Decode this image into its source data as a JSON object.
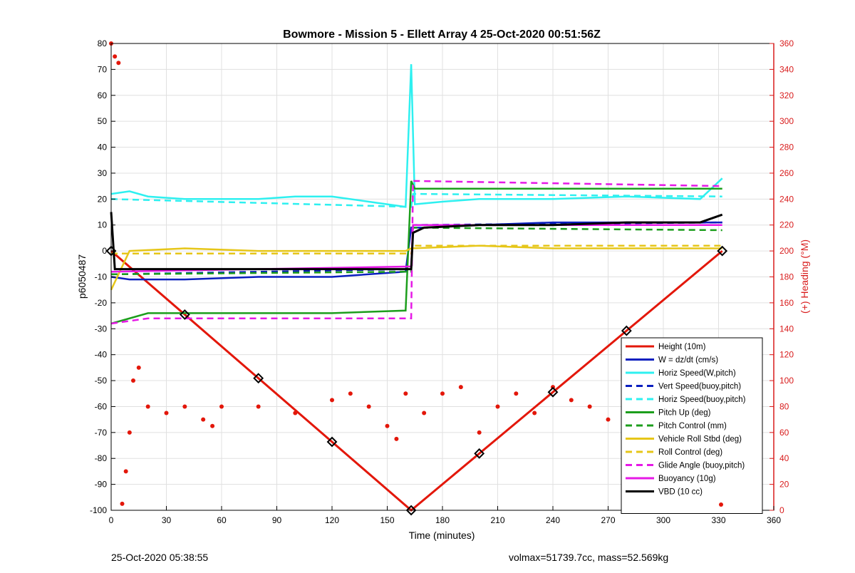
{
  "chart_data": {
    "type": "line",
    "title": "Bowmore - Mission 5 - Ellett Array 4 25-Oct-2020 00:51:56Z",
    "xlabel": "Time (minutes)",
    "ylabel_left": "p6050487",
    "ylabel_right": "(+) Heading (°M)",
    "xlim": [
      0,
      360
    ],
    "ylim_left": [
      -100,
      80
    ],
    "ylim_right": [
      0,
      360
    ],
    "xticks": [
      0,
      30,
      60,
      90,
      120,
      150,
      180,
      210,
      240,
      270,
      300,
      330,
      360
    ],
    "yticks_left": [
      -100,
      -90,
      -80,
      -70,
      -60,
      -50,
      -40,
      -30,
      -20,
      -10,
      0,
      10,
      20,
      30,
      40,
      50,
      60,
      70,
      80
    ],
    "yticks_right": [
      0,
      20,
      40,
      60,
      80,
      100,
      120,
      140,
      160,
      180,
      200,
      220,
      240,
      260,
      280,
      300,
      320,
      340,
      360
    ],
    "grid": true,
    "legend_position": "bottom-right",
    "colors": {
      "red": "#e3170a",
      "blue": "#0a1fbf",
      "cyan": "#2ef0f0",
      "green": "#1c9e1c",
      "yellow": "#e6c619",
      "magenta": "#e619e6",
      "black": "#000000",
      "right_axis": "#d81b1b"
    },
    "legend": [
      {
        "label": "Height (10m)",
        "color": "#e3170a",
        "style": "solid"
      },
      {
        "label": "W = dz/dt (cm/s)",
        "color": "#0a1fbf",
        "style": "solid"
      },
      {
        "label": "Horiz Speed(W,pitch)",
        "color": "#2ef0f0",
        "style": "solid"
      },
      {
        "label": "Vert Speed(buoy,pitch)",
        "color": "#0a1fbf",
        "style": "dashed"
      },
      {
        "label": "Horiz Speed(buoy,pitch)",
        "color": "#2ef0f0",
        "style": "dashed"
      },
      {
        "label": "Pitch Up (deg)",
        "color": "#1c9e1c",
        "style": "solid"
      },
      {
        "label": "Pitch Control (mm)",
        "color": "#1c9e1c",
        "style": "dashed"
      },
      {
        "label": "Vehicle Roll Stbd (deg)",
        "color": "#e6c619",
        "style": "solid"
      },
      {
        "label": "Roll Control (deg)",
        "color": "#e6c619",
        "style": "dashed"
      },
      {
        "label": "Glide Angle (buoy,pitch)",
        "color": "#e619e6",
        "style": "dashed"
      },
      {
        "label": "Buoyancy (10g)",
        "color": "#e619e6",
        "style": "solid"
      },
      {
        "label": "VBD (10 cc)",
        "color": "#000000",
        "style": "solid"
      },
      {
        "label": "",
        "color": "#e3170a",
        "style": "dot"
      }
    ],
    "series": [
      {
        "name": "Height (10m)",
        "axis": "left",
        "x": [
          0,
          163,
          332
        ],
        "y": [
          0,
          -100,
          0
        ]
      },
      {
        "name": "W = dz/dt (cm/s)",
        "axis": "left",
        "x": [
          0,
          10,
          40,
          80,
          120,
          160,
          163,
          170,
          200,
          240,
          280,
          320,
          332
        ],
        "y": [
          -10,
          -11,
          -11,
          -10,
          -10,
          -8,
          9,
          9,
          10,
          11,
          11,
          11,
          11
        ]
      },
      {
        "name": "Horiz Speed(W,pitch)",
        "axis": "left",
        "x": [
          0,
          10,
          20,
          40,
          60,
          80,
          100,
          120,
          140,
          160,
          163,
          165,
          180,
          200,
          240,
          280,
          320,
          332
        ],
        "y": [
          22,
          23,
          21,
          20,
          20,
          20,
          21,
          21,
          19,
          17,
          72,
          18,
          19,
          20,
          20,
          21,
          20,
          28
        ]
      },
      {
        "name": "Vert Speed(buoy,pitch)",
        "axis": "left",
        "x": [
          0,
          163,
          164,
          332
        ],
        "y": [
          -9,
          -7,
          10,
          11
        ]
      },
      {
        "name": "Horiz Speed(buoy,pitch)",
        "axis": "left",
        "x": [
          0,
          163,
          164,
          332
        ],
        "y": [
          20,
          17,
          22,
          21
        ]
      },
      {
        "name": "Pitch Up (deg)",
        "axis": "left",
        "x": [
          0,
          20,
          60,
          120,
          160,
          163,
          165,
          200,
          240,
          300,
          332
        ],
        "y": [
          -28,
          -24,
          -24,
          -24,
          -23,
          27,
          24,
          24,
          24,
          24,
          24
        ]
      },
      {
        "name": "Pitch Control (mm)",
        "axis": "left",
        "x": [
          0,
          163,
          164,
          332
        ],
        "y": [
          -9,
          -8,
          9,
          8
        ]
      },
      {
        "name": "Vehicle Roll Stbd (deg)",
        "axis": "left",
        "x": [
          0,
          10,
          40,
          80,
          120,
          160,
          163,
          200,
          240,
          280,
          320,
          332
        ],
        "y": [
          -15,
          0,
          1,
          0,
          0,
          0,
          1,
          2,
          1,
          1,
          1,
          1
        ]
      },
      {
        "name": "Roll Control (deg)",
        "axis": "left",
        "x": [
          0,
          163,
          164,
          332
        ],
        "y": [
          -1,
          -1,
          2,
          2
        ]
      },
      {
        "name": "Glide Angle (buoy,pitch)",
        "axis": "left",
        "x": [
          0,
          20,
          163,
          164,
          332
        ],
        "y": [
          -28,
          -26,
          -26,
          27,
          25
        ]
      },
      {
        "name": "Buoyancy (10g)",
        "axis": "left",
        "x": [
          0,
          163,
          164,
          332
        ],
        "y": [
          -8,
          -6,
          10,
          10
        ]
      },
      {
        "name": "VBD (10 cc)",
        "axis": "left",
        "x": [
          0,
          2,
          163,
          164,
          170,
          200,
          240,
          280,
          320,
          332
        ],
        "y": [
          15,
          -7,
          -7,
          7,
          9,
          10,
          10,
          11,
          11,
          14
        ]
      },
      {
        "name": "",
        "axis": "right",
        "x": [
          0,
          2,
          4,
          6,
          8,
          10,
          12,
          15,
          20,
          30,
          40,
          50,
          55,
          60,
          80,
          100,
          120,
          130,
          140,
          150,
          155,
          160,
          170,
          180,
          190,
          200,
          210,
          220,
          230,
          240,
          250,
          260,
          270,
          280,
          290,
          300,
          310,
          320,
          330,
          332
        ],
        "y": [
          360,
          350,
          345,
          5,
          30,
          60,
          100,
          110,
          80,
          75,
          80,
          70,
          65,
          80,
          80,
          75,
          85,
          90,
          80,
          65,
          55,
          90,
          75,
          90,
          95,
          60,
          80,
          90,
          75,
          95,
          85,
          80,
          70,
          80,
          75,
          80,
          85,
          80,
          75,
          13
        ]
      }
    ]
  },
  "footer": {
    "left": "25-Oct-2020 05:38:55",
    "right": "volmax=51739.7cc, mass=52.569kg"
  }
}
